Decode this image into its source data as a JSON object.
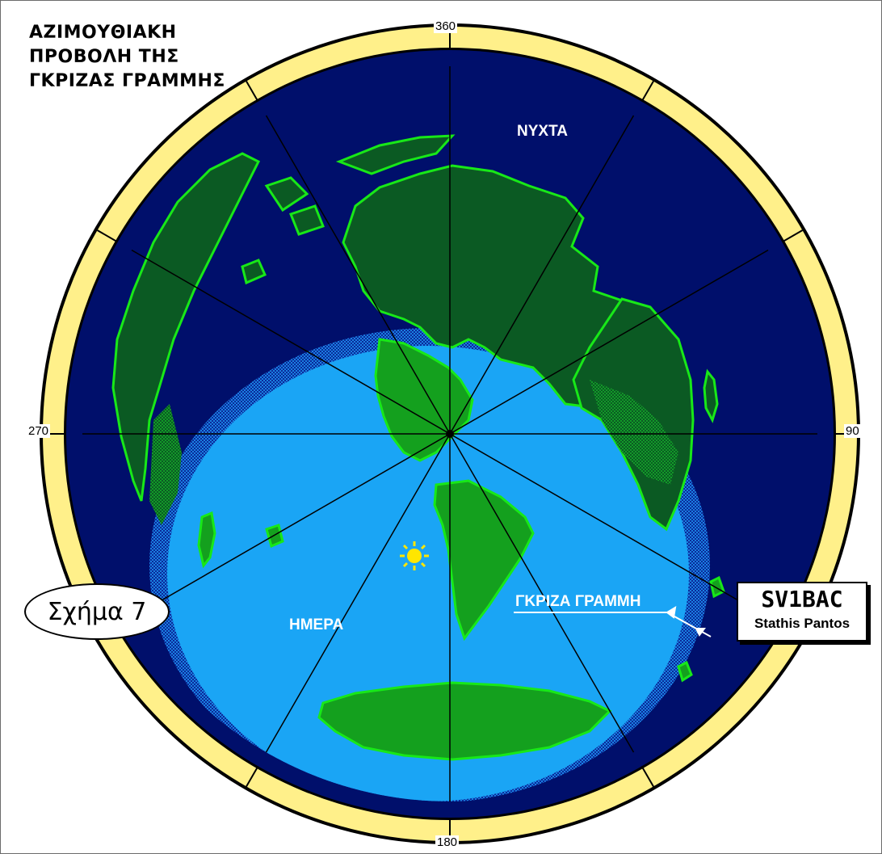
{
  "title": {
    "line1": "ΑΖΙΜΟΥΘΙΑΚΗ",
    "line2": "ΠΡΟΒΟΛΗ ΤΗΣ",
    "line3": "ΓΚΡΙΖΑΣ ΓΡΑΜΜΗΣ"
  },
  "azimuth_labels": {
    "north": "360",
    "east": "90",
    "south": "180",
    "west": "270"
  },
  "regions": {
    "night": "ΝΥΧΤΑ",
    "day": "ΗΜΕΡΑ",
    "grayline": "ΓΚΡΙΖΑ ΓΡΑΜΜΗ"
  },
  "figure_badge": "Σχήμα 7",
  "author": {
    "callsign": "SV1BAC",
    "name": "Stathis Pantos"
  },
  "icons": [
    "sun-icon",
    "arrow-icon"
  ],
  "colors": {
    "night": "#000f6b",
    "day": "#1aa5f5",
    "land_night": "#0b5a23",
    "land_day": "#14a01e",
    "land_edge": "#18e818",
    "bezel": "#fff08a",
    "sun": "#ffe600"
  }
}
